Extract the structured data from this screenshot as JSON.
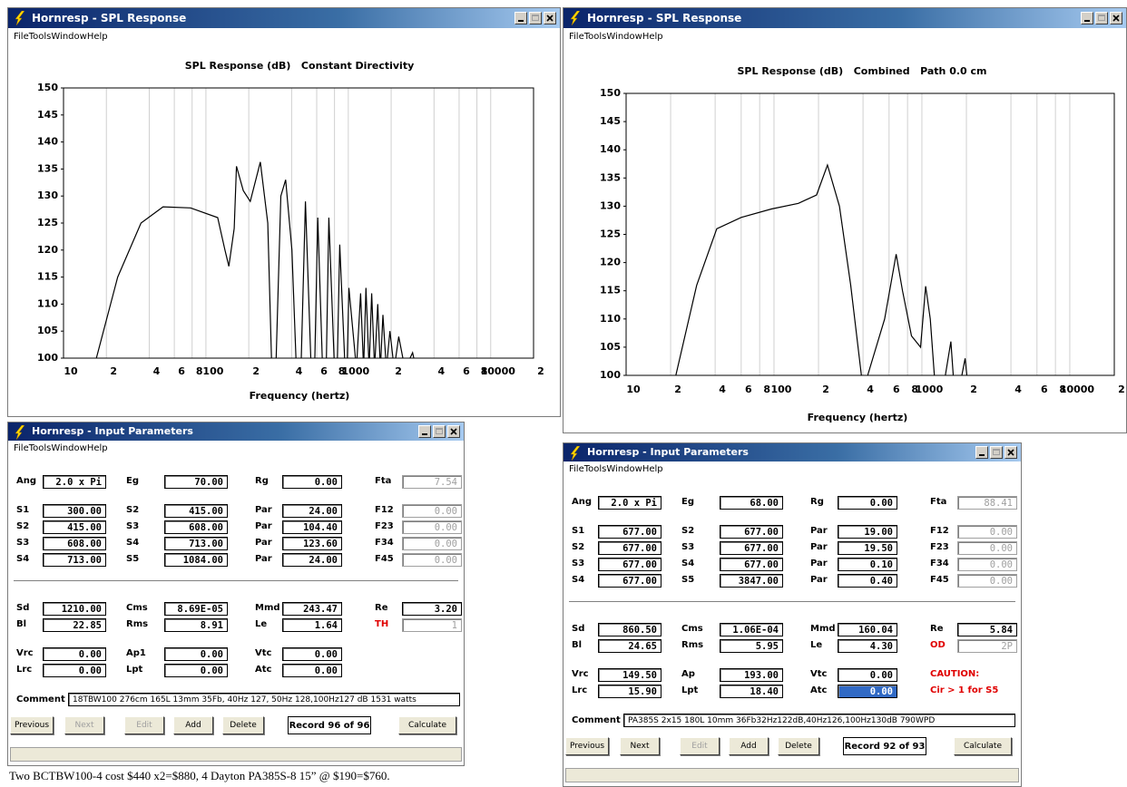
{
  "windows": [
    {
      "title": "Hornresp - SPL Response",
      "menu": [
        "File",
        "Tools",
        "Window",
        "Help"
      ]
    },
    {
      "title": "Hornresp - SPL Response",
      "menu": [
        "File",
        "Tools",
        "Window",
        "Help"
      ]
    },
    {
      "title": "Hornresp - Input Parameters",
      "menu": [
        "File",
        "Tools",
        "Window",
        "Help"
      ]
    },
    {
      "title": "Hornresp - Input Parameters",
      "menu": [
        "File",
        "Tools",
        "Window",
        "Help"
      ]
    }
  ],
  "chart_data": [
    {
      "type": "line",
      "title": "SPL Response (dB)   Constant Directivity",
      "x_label": "Frequency (hertz)",
      "log_x": true,
      "grid": true,
      "color": "#000000",
      "x": [
        17,
        24,
        35,
        50,
        78,
        121,
        136,
        145,
        158,
        164,
        183,
        205,
        241,
        272,
        290,
        310,
        336,
        363,
        402,
        432,
        465,
        500,
        548,
        580,
        610,
        660,
        700,
        730,
        800,
        835,
        870,
        950,
        980,
        1010,
        1140,
        1220,
        1280,
        1330,
        1400,
        1460,
        1530,
        1610,
        1680,
        1750,
        1850,
        1960,
        2100,
        2260,
        2500,
        2830,
        3000
      ],
      "values": [
        100,
        115,
        125,
        128,
        127.8,
        126,
        120,
        117,
        124,
        135.5,
        131,
        129,
        136.3,
        125,
        98,
        98,
        130,
        133,
        120,
        98,
        98,
        129,
        98,
        98,
        126,
        98,
        98,
        126,
        98,
        98,
        121,
        98,
        98,
        113,
        98,
        112,
        98,
        113,
        98,
        112,
        98,
        110,
        98,
        108,
        98,
        105,
        98,
        104,
        98,
        101,
        98
      ],
      "xlim": [
        10,
        20000
      ],
      "ylim": [
        100,
        150
      ],
      "xticks": [
        10,
        {
          "value": 20,
          "label": "2"
        },
        {
          "value": 40,
          "label": "4"
        },
        {
          "value": 60,
          "label": "6"
        },
        {
          "value": 80,
          "label": "8"
        },
        100,
        {
          "value": 200,
          "label": "2"
        },
        {
          "value": 400,
          "label": "4"
        },
        {
          "value": 600,
          "label": "6"
        },
        {
          "value": 800,
          "label": "8"
        },
        1000,
        {
          "value": 2000,
          "label": "2"
        },
        {
          "value": 4000,
          "label": "4"
        },
        {
          "value": 6000,
          "label": "6"
        },
        {
          "value": 8000,
          "label": "8"
        },
        10000,
        {
          "value": 20000,
          "label": "2"
        }
      ],
      "yticks": [
        100,
        105,
        110,
        115,
        120,
        125,
        130,
        135,
        140,
        145,
        150
      ]
    },
    {
      "type": "line",
      "title": "SPL Response (dB)   Combined   Path 0.0 cm",
      "x_label": "Frequency (hertz)",
      "log_x": true,
      "grid": true,
      "color": "#000000",
      "x": [
        21.7,
        30,
        41,
        60,
        96,
        146,
        194,
        230,
        277,
        330,
        390,
        410,
        430,
        560,
        670,
        740,
        850,
        980,
        1060,
        1140,
        1230,
        1400,
        1570,
        1650,
        1800,
        1960,
        2050
      ],
      "values": [
        100,
        116,
        126,
        128,
        129.5,
        130.5,
        132,
        137.3,
        130,
        116,
        100,
        98,
        100,
        110,
        121.5,
        115,
        107,
        105,
        115.8,
        110,
        98,
        98,
        106,
        98,
        98,
        103,
        98
      ],
      "xlim": [
        10,
        20000
      ],
      "ylim": [
        100,
        150
      ],
      "xticks": [
        10,
        {
          "value": 20,
          "label": "2"
        },
        {
          "value": 40,
          "label": "4"
        },
        {
          "value": 60,
          "label": "6"
        },
        {
          "value": 80,
          "label": "8"
        },
        100,
        {
          "value": 200,
          "label": "2"
        },
        {
          "value": 400,
          "label": "4"
        },
        {
          "value": 600,
          "label": "6"
        },
        {
          "value": 800,
          "label": "8"
        },
        1000,
        {
          "value": 2000,
          "label": "2"
        },
        {
          "value": 4000,
          "label": "4"
        },
        {
          "value": 6000,
          "label": "6"
        },
        {
          "value": 8000,
          "label": "8"
        },
        10000,
        {
          "value": 20000,
          "label": "2"
        }
      ],
      "yticks": [
        100,
        105,
        110,
        115,
        120,
        125,
        130,
        135,
        140,
        145,
        150
      ]
    }
  ],
  "input_panels": [
    {
      "rows": [
        [
          {
            "label": "Ang",
            "value": "2.0 x Pi"
          },
          {
            "label": "Eg",
            "value": "70.00"
          },
          {
            "label": "Rg",
            "value": "0.00"
          },
          {
            "label": "Fta",
            "value": "7.54",
            "disabled": true
          }
        ],
        [
          {
            "label": "S1",
            "value": "300.00"
          },
          {
            "label": "S2",
            "value": "415.00"
          },
          {
            "label": "Par",
            "value": "24.00"
          },
          {
            "label": "F12",
            "value": "0.00",
            "disabled": true
          }
        ],
        [
          {
            "label": "S2",
            "value": "415.00"
          },
          {
            "label": "S3",
            "value": "608.00"
          },
          {
            "label": "Par",
            "value": "104.40"
          },
          {
            "label": "F23",
            "value": "0.00",
            "disabled": true
          }
        ],
        [
          {
            "label": "S3",
            "value": "608.00"
          },
          {
            "label": "S4",
            "value": "713.00"
          },
          {
            "label": "Par",
            "value": "123.60"
          },
          {
            "label": "F34",
            "value": "0.00",
            "disabled": true
          }
        ],
        [
          {
            "label": "S4",
            "value": "713.00"
          },
          {
            "label": "S5",
            "value": "1084.00"
          },
          {
            "label": "Par",
            "value": "24.00"
          },
          {
            "label": "F45",
            "value": "0.00",
            "disabled": true
          }
        ],
        [
          {
            "label": "Sd",
            "value": "1210.00"
          },
          {
            "label": "Cms",
            "value": "8.69E-05"
          },
          {
            "label": "Mmd",
            "value": "243.47"
          },
          {
            "label": "Re",
            "value": "3.20"
          }
        ],
        [
          {
            "label": "Bl",
            "value": "22.85"
          },
          {
            "label": "Rms",
            "value": "8.91"
          },
          {
            "label": "Le",
            "value": "1.64"
          },
          {
            "label": "TH",
            "value": "1",
            "warn": true,
            "disabled": true
          }
        ],
        [
          {
            "label": "Vrc",
            "value": "0.00"
          },
          {
            "label": "Ap1",
            "value": "0.00"
          },
          {
            "label": "Vtc",
            "value": "0.00"
          }
        ],
        [
          {
            "label": "Lrc",
            "value": "0.00"
          },
          {
            "label": "Lpt",
            "value": "0.00"
          },
          {
            "label": "Atc",
            "value": "0.00"
          }
        ]
      ],
      "comment_label": "Comment",
      "comment": "18TBW100 276cm 165L 13mm 35Fb, 40Hz 127, 50Hz 128,100Hz127 dB 1531 watts",
      "buttons": [
        {
          "label": "Previous"
        },
        {
          "label": "Next",
          "disabled": true
        },
        {
          "label": "Edit",
          "disabled": true
        },
        {
          "label": "Add"
        },
        {
          "label": "Delete"
        },
        {
          "label": "Record 96 of 96",
          "record": true
        },
        {
          "label": "Calculate"
        }
      ]
    },
    {
      "rows": [
        [
          {
            "label": "Ang",
            "value": "2.0 x Pi"
          },
          {
            "label": "Eg",
            "value": "68.00"
          },
          {
            "label": "Rg",
            "value": "0.00"
          },
          {
            "label": "Fta",
            "value": "88.41",
            "disabled": true
          }
        ],
        [
          {
            "label": "S1",
            "value": "677.00"
          },
          {
            "label": "S2",
            "value": "677.00"
          },
          {
            "label": "Par",
            "value": "19.00"
          },
          {
            "label": "F12",
            "value": "0.00",
            "disabled": true
          }
        ],
        [
          {
            "label": "S2",
            "value": "677.00"
          },
          {
            "label": "S3",
            "value": "677.00"
          },
          {
            "label": "Par",
            "value": "19.50"
          },
          {
            "label": "F23",
            "value": "0.00",
            "disabled": true
          }
        ],
        [
          {
            "label": "S3",
            "value": "677.00"
          },
          {
            "label": "S4",
            "value": "677.00"
          },
          {
            "label": "Par",
            "value": "0.10"
          },
          {
            "label": "F34",
            "value": "0.00",
            "disabled": true
          }
        ],
        [
          {
            "label": "S4",
            "value": "677.00"
          },
          {
            "label": "S5",
            "value": "3847.00"
          },
          {
            "label": "Par",
            "value": "0.40"
          },
          {
            "label": "F45",
            "value": "0.00",
            "disabled": true
          }
        ],
        [
          {
            "label": "Sd",
            "value": "860.50"
          },
          {
            "label": "Cms",
            "value": "1.06E-04"
          },
          {
            "label": "Mmd",
            "value": "160.04"
          },
          {
            "label": "Re",
            "value": "5.84"
          }
        ],
        [
          {
            "label": "Bl",
            "value": "24.65"
          },
          {
            "label": "Rms",
            "value": "5.95"
          },
          {
            "label": "Le",
            "value": "4.30"
          },
          {
            "label": "OD",
            "value": "2P",
            "warn": true,
            "disabled": true
          }
        ],
        [
          {
            "label": "Vrc",
            "value": "149.50"
          },
          {
            "label": "Ap",
            "value": "193.00"
          },
          {
            "label": "Vtc",
            "value": "0.00"
          },
          {
            "label": "CAUTION:",
            "warn": true
          }
        ],
        [
          {
            "label": "Lrc",
            "value": "15.90"
          },
          {
            "label": "Lpt",
            "value": "18.40"
          },
          {
            "label": "Atc",
            "value": "0.00",
            "selected": true
          },
          {
            "label": "Cir > 1 for S5",
            "warn": true
          }
        ]
      ],
      "comment_label": "Comment",
      "comment": "PA385S 2x15 180L 10mm 36Fb32Hz122dB,40Hz126,100Hz130dB 790WPD",
      "buttons": [
        {
          "label": "Previous"
        },
        {
          "label": "Next"
        },
        {
          "label": "Edit",
          "disabled": true
        },
        {
          "label": "Add"
        },
        {
          "label": "Delete"
        },
        {
          "label": "Record 92 of 93",
          "record": true
        },
        {
          "label": "Calculate"
        }
      ]
    }
  ],
  "caption": "Two BCTBW100-4 cost $440 x2=$880, 4 Dayton PA385S-8 15” @ $190=$760."
}
